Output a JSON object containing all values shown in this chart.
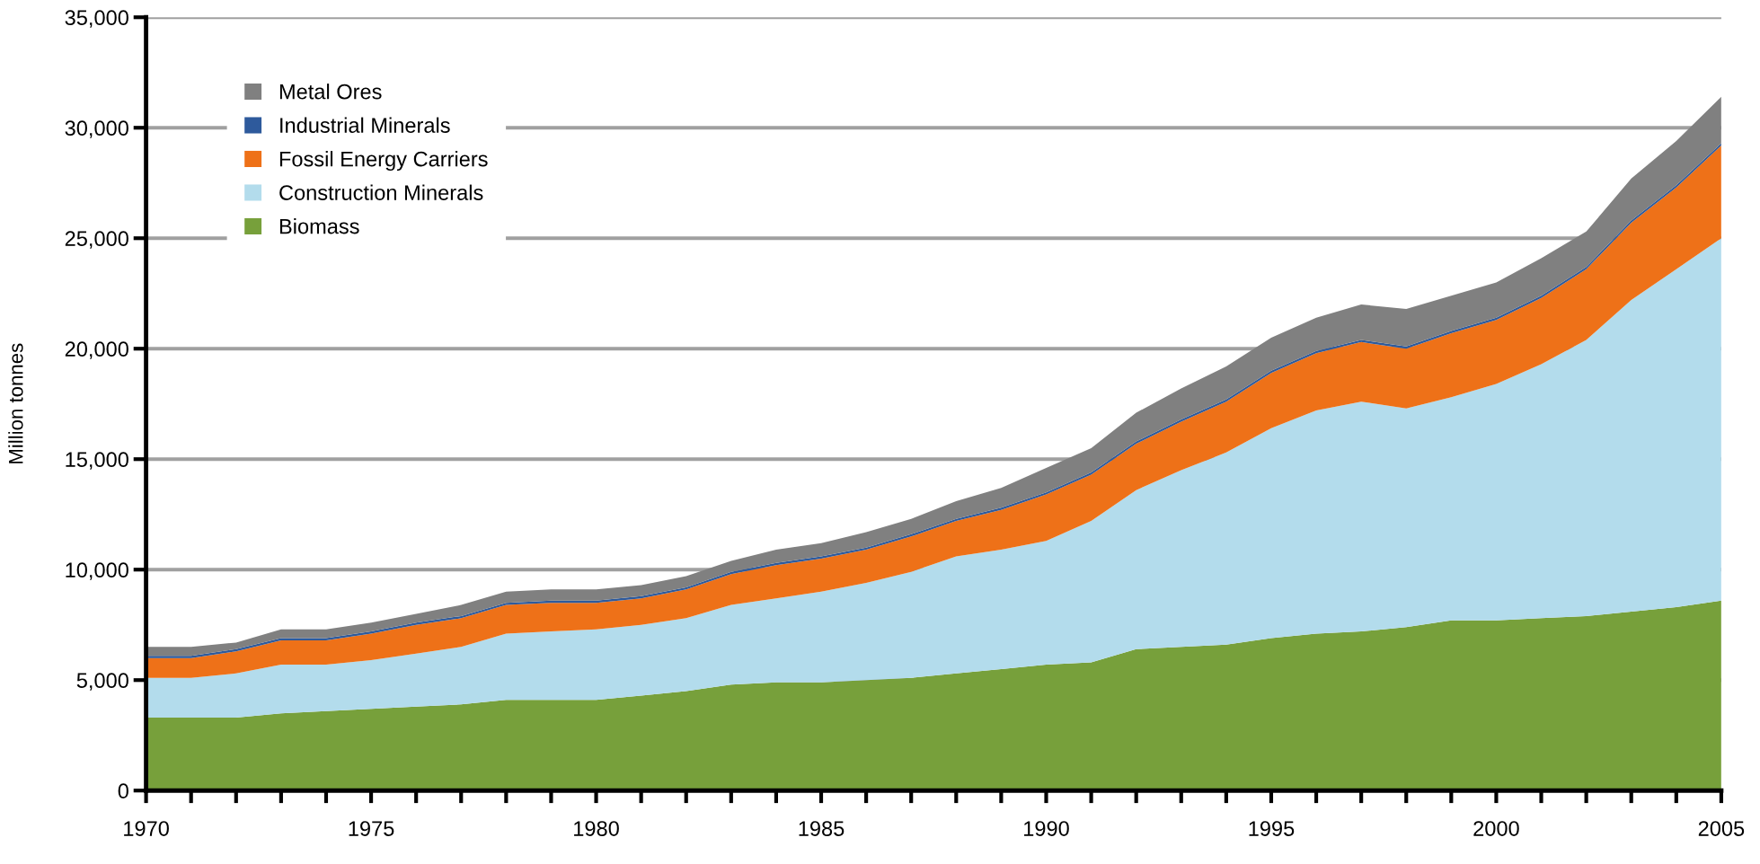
{
  "chart_data": {
    "type": "area",
    "stacked": true,
    "ylabel": "Million tonnes",
    "x": [
      1970,
      1971,
      1972,
      1973,
      1974,
      1975,
      1976,
      1977,
      1978,
      1979,
      1980,
      1981,
      1982,
      1983,
      1984,
      1985,
      1986,
      1987,
      1988,
      1989,
      1990,
      1991,
      1992,
      1993,
      1994,
      1995,
      1996,
      1997,
      1998,
      1999,
      2000,
      2001,
      2002,
      2003,
      2004,
      2005
    ],
    "series": [
      {
        "name": "Biomass",
        "color": "#77a03b",
        "values": [
          3300,
          3300,
          3300,
          3500,
          3600,
          3700,
          3800,
          3900,
          4100,
          4100,
          4100,
          4300,
          4500,
          4800,
          4900,
          4900,
          5000,
          5100,
          5300,
          5500,
          5700,
          5800,
          6400,
          6500,
          6600,
          6900,
          7100,
          7200,
          7400,
          7700,
          7700,
          7800,
          7900,
          8100,
          8300,
          8600
        ]
      },
      {
        "name": "Construction Minerals",
        "color": "#b3dcec",
        "values": [
          1800,
          1800,
          2000,
          2200,
          2100,
          2200,
          2400,
          2600,
          3000,
          3100,
          3200,
          3200,
          3300,
          3600,
          3800,
          4100,
          4400,
          4800,
          5300,
          5400,
          5600,
          6400,
          7200,
          8000,
          8700,
          9500,
          10100,
          10400,
          9900,
          10100,
          10700,
          11500,
          12500,
          14100,
          15300,
          16400
        ]
      },
      {
        "name": "Fossil Energy Carriers",
        "color": "#ee7118",
        "values": [
          900,
          900,
          1000,
          1100,
          1100,
          1200,
          1300,
          1300,
          1300,
          1300,
          1200,
          1200,
          1300,
          1400,
          1500,
          1500,
          1500,
          1600,
          1600,
          1800,
          2100,
          2100,
          2100,
          2200,
          2300,
          2500,
          2600,
          2700,
          2700,
          2900,
          2900,
          3000,
          3200,
          3500,
          3700,
          4200
        ]
      },
      {
        "name": "Industrial Minerals",
        "color": "#2e5a9c",
        "values": [
          100,
          100,
          100,
          100,
          100,
          100,
          100,
          100,
          100,
          100,
          100,
          100,
          100,
          100,
          100,
          100,
          100,
          100,
          100,
          100,
          100,
          100,
          100,
          100,
          100,
          100,
          100,
          100,
          100,
          100,
          100,
          100,
          100,
          100,
          100,
          100
        ]
      },
      {
        "name": "Metal Ores",
        "color": "#808080",
        "values": [
          400,
          400,
          300,
          400,
          400,
          400,
          400,
          500,
          500,
          500,
          500,
          500,
          500,
          500,
          600,
          600,
          700,
          700,
          800,
          900,
          1100,
          1100,
          1300,
          1400,
          1500,
          1500,
          1500,
          1600,
          1700,
          1600,
          1600,
          1700,
          1600,
          1900,
          2000,
          2100
        ]
      }
    ],
    "xlim": [
      1970,
      2005
    ],
    "xticks": [
      1970,
      {
        "value": 1971,
        "label": null
      },
      {
        "value": 1972,
        "label": null
      },
      {
        "value": 1973,
        "label": null
      },
      {
        "value": 1974,
        "label": null
      },
      1975,
      {
        "value": 1976,
        "label": null
      },
      {
        "value": 1977,
        "label": null
      },
      {
        "value": 1978,
        "label": null
      },
      {
        "value": 1979,
        "label": null
      },
      1980,
      {
        "value": 1981,
        "label": null
      },
      {
        "value": 1982,
        "label": null
      },
      {
        "value": 1983,
        "label": null
      },
      {
        "value": 1984,
        "label": null
      },
      1985,
      {
        "value": 1986,
        "label": null
      },
      {
        "value": 1987,
        "label": null
      },
      {
        "value": 1988,
        "label": null
      },
      {
        "value": 1989,
        "label": null
      },
      1990,
      {
        "value": 1991,
        "label": null
      },
      {
        "value": 1992,
        "label": null
      },
      {
        "value": 1993,
        "label": null
      },
      {
        "value": 1994,
        "label": null
      },
      1995,
      {
        "value": 1996,
        "label": null
      },
      {
        "value": 1997,
        "label": null
      },
      {
        "value": 1998,
        "label": null
      },
      {
        "value": 1999,
        "label": null
      },
      2000,
      {
        "value": 2001,
        "label": null
      },
      {
        "value": 2002,
        "label": null
      },
      {
        "value": 2003,
        "label": null
      },
      {
        "value": 2004,
        "label": null
      },
      2005
    ],
    "ylim": [
      0,
      35000
    ],
    "yticks": [
      0,
      {
        "value": 5000,
        "label": "5,000"
      },
      {
        "value": 10000,
        "label": "10,000"
      },
      {
        "value": 15000,
        "label": "15,000"
      },
      {
        "value": 20000,
        "label": "20,000"
      },
      {
        "value": 25000,
        "label": "25,000"
      },
      {
        "value": 30000,
        "label": "30,000"
      },
      {
        "value": 35000,
        "label": "35,000"
      }
    ],
    "grid": "y",
    "legend": "top left"
  }
}
